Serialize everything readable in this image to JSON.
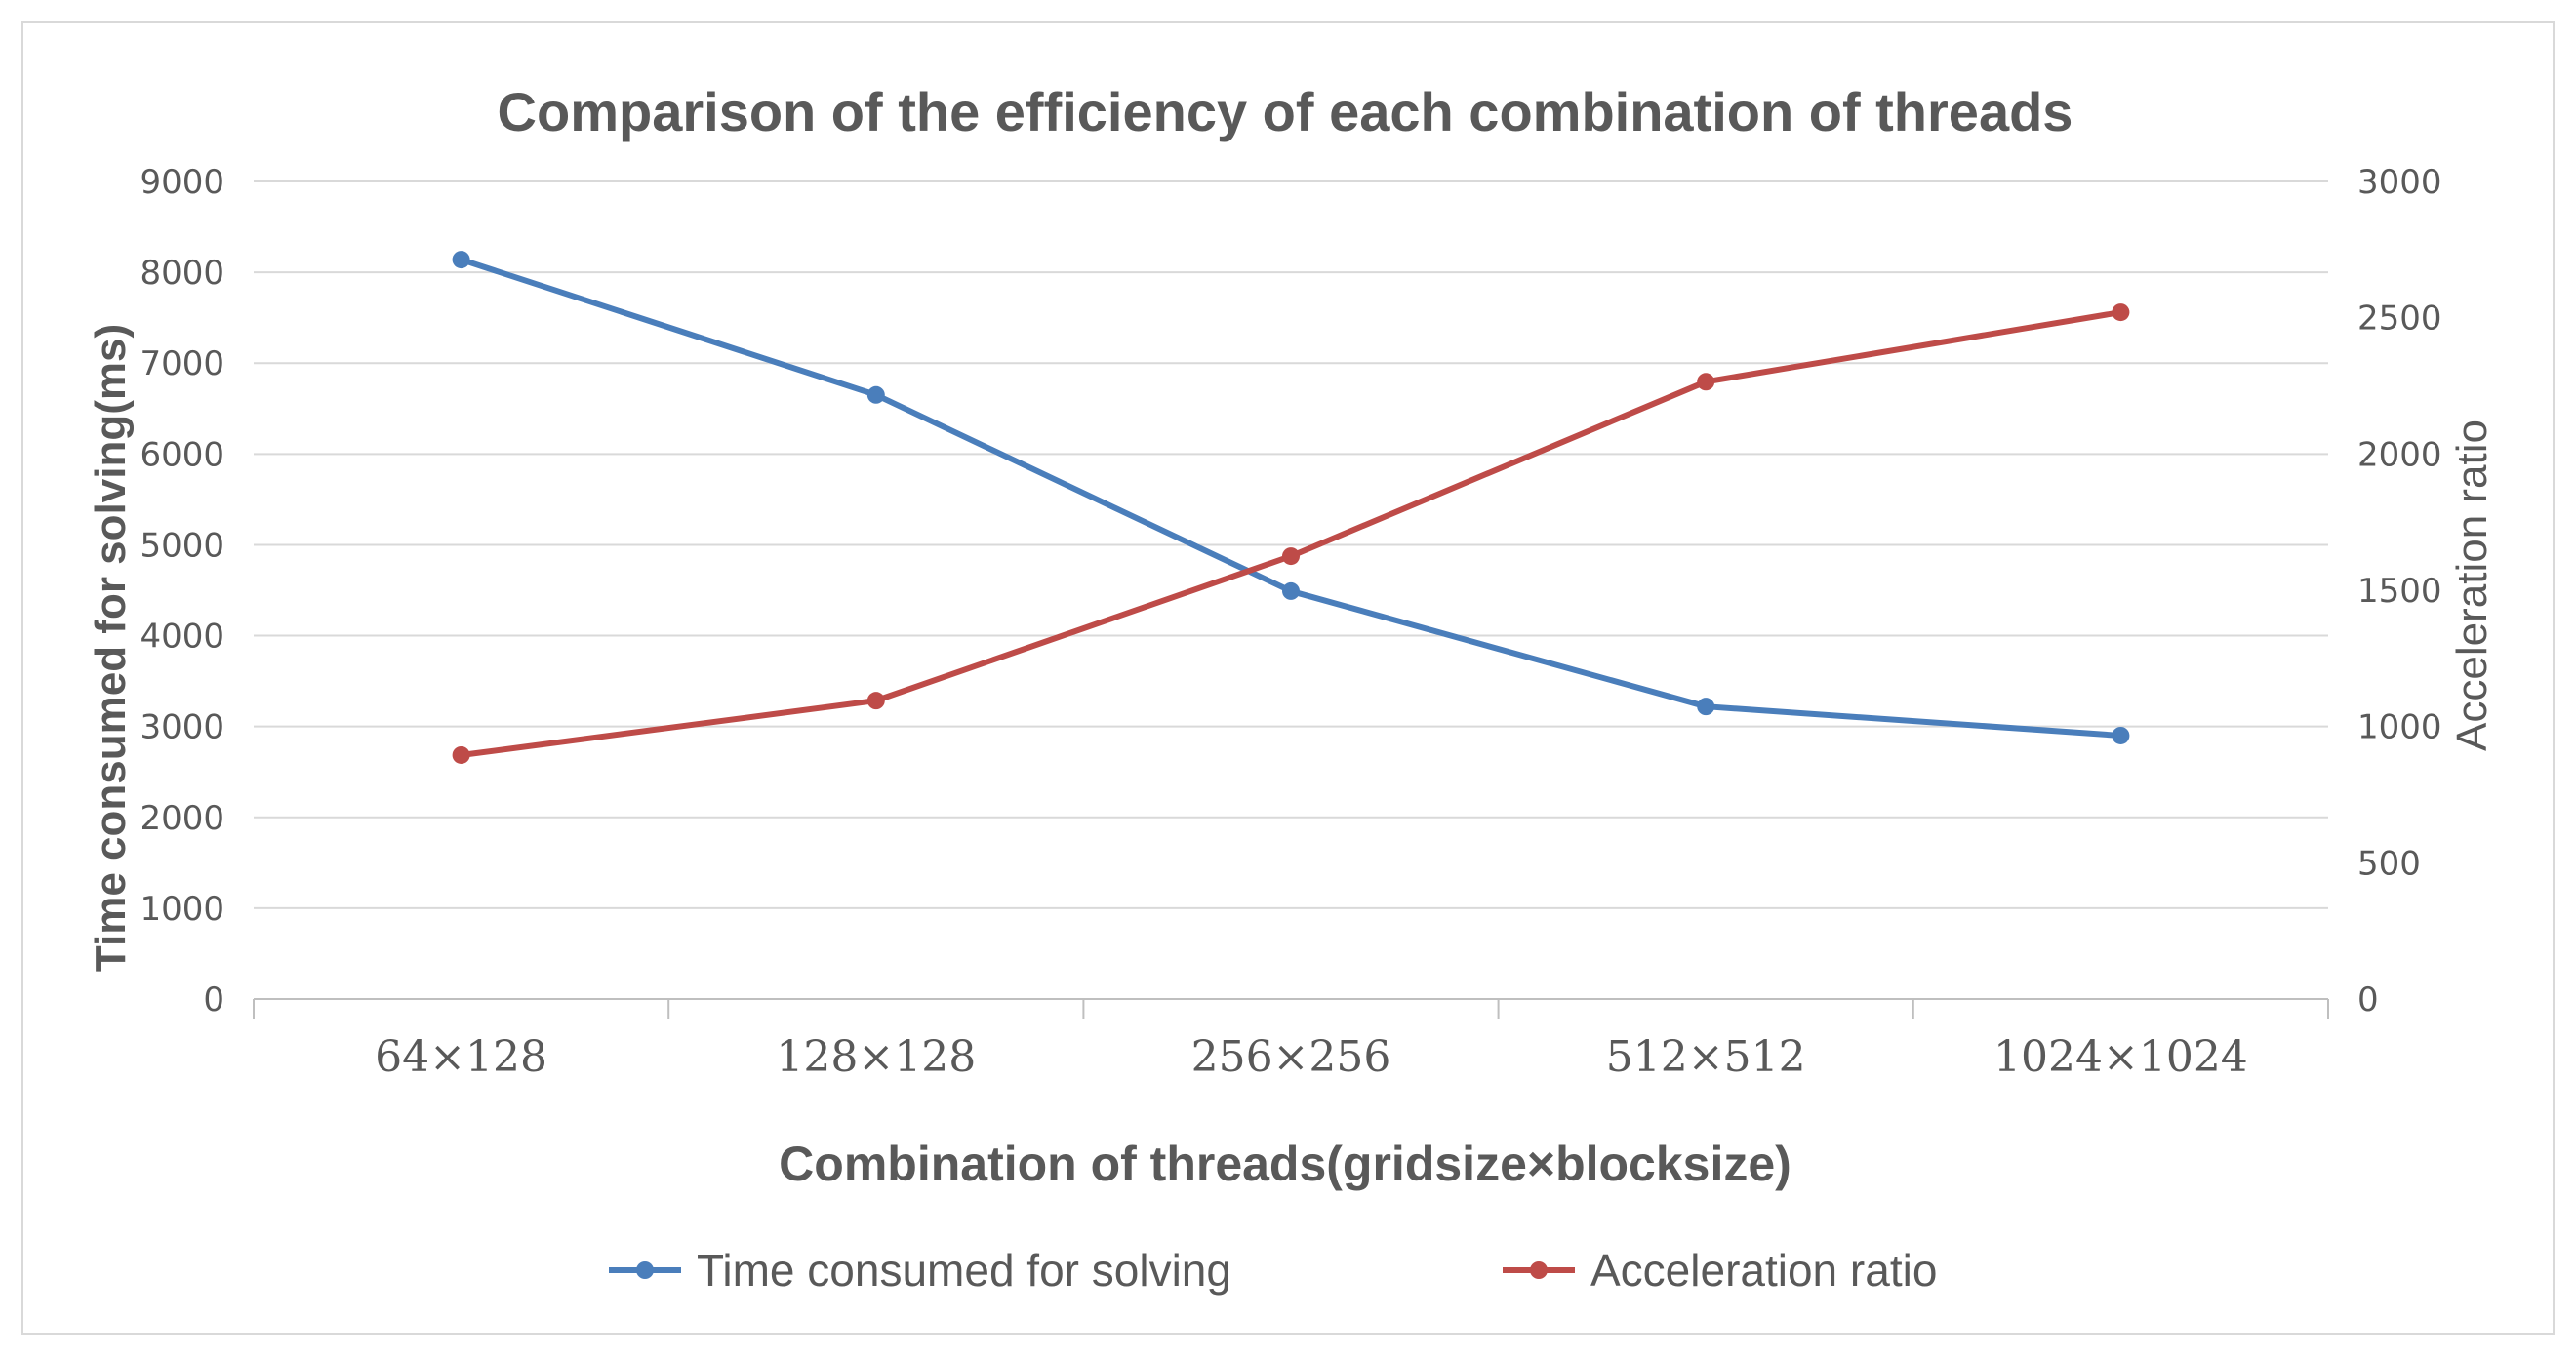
{
  "chart_data": {
    "type": "line",
    "title": "Comparison of the efficiency of each combination of threads",
    "xlabel": "Combination of threads(gridsize×blocksize)",
    "ylabel": "Time consumed for solving(ms)",
    "y2label": "Acceleration ratio",
    "categories": [
      "64×128",
      "128×128",
      "256×256",
      "512×512",
      "1024×1024"
    ],
    "ylim": [
      0,
      9000
    ],
    "yticks": [
      "0",
      "1000",
      "2000",
      "3000",
      "4000",
      "5000",
      "6000",
      "7000",
      "8000",
      "9000"
    ],
    "y2lim": [
      0,
      3000
    ],
    "y2ticks": [
      "0",
      "500",
      "1000",
      "1500",
      "2000",
      "2500",
      "3000"
    ],
    "grid": true,
    "legend_position": "bottom",
    "series": [
      {
        "name": "Time consumed for solving",
        "axis": "left",
        "color": "#4a7ebb",
        "values": [
          8140,
          6650,
          4490,
          3220,
          2900
        ]
      },
      {
        "name": "Acceleration ratio",
        "axis": "right",
        "color": "#be4b48",
        "values": [
          895,
          1095,
          1625,
          2265,
          2520
        ]
      }
    ]
  }
}
